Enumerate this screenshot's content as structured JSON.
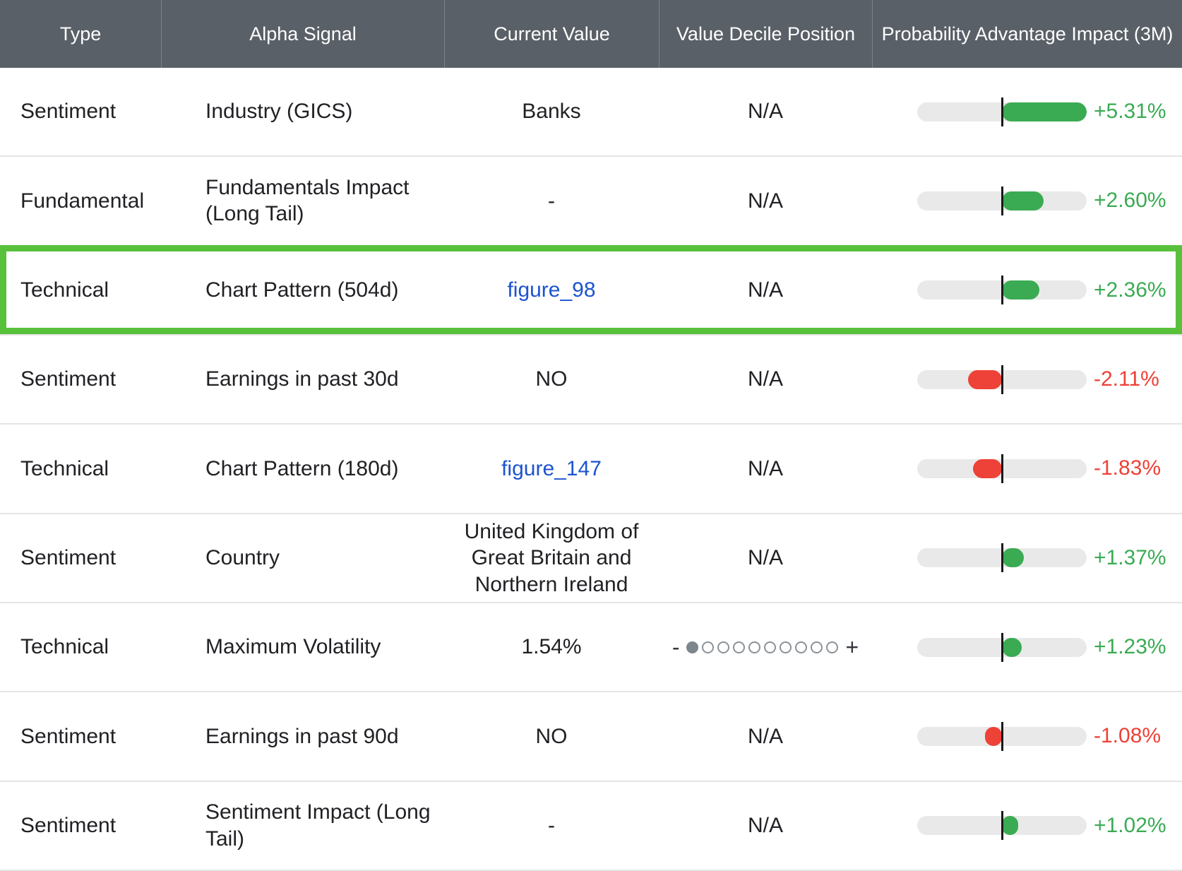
{
  "colors": {
    "header_bg": "#5a6067",
    "positive_green": "#3aab53",
    "negative_red": "#ee4137",
    "link_blue": "#1d53cf",
    "highlight_border_green": "#58c13c",
    "track_gray": "#e9e9e9"
  },
  "table": {
    "columns": [
      "Type",
      "Alpha Signal",
      "Current Value",
      "Value Decile Position",
      "Probability Advantage Impact (3M)"
    ],
    "impact_scale_max": 5.31,
    "decile_widget": {
      "minus_label": "-",
      "plus_label": "+",
      "dots_total": 10,
      "filled_dot_index": 0
    },
    "rows": [
      {
        "type": "Sentiment",
        "signal": "Industry (GICS)",
        "value": "Banks",
        "value_is_link": false,
        "decile": "N/A",
        "has_decile_widget": false,
        "impact": "+5.31%",
        "impact_value": 5.31,
        "highlighted": false
      },
      {
        "type": "Fundamental",
        "signal": "Fundamentals Impact (Long Tail)",
        "value": "-",
        "value_is_link": false,
        "decile": "N/A",
        "has_decile_widget": false,
        "impact": "+2.60%",
        "impact_value": 2.6,
        "highlighted": false
      },
      {
        "type": "Technical",
        "signal": "Chart Pattern (504d)",
        "value": "figure_98",
        "value_is_link": true,
        "decile": "N/A",
        "has_decile_widget": false,
        "impact": "+2.36%",
        "impact_value": 2.36,
        "highlighted": true
      },
      {
        "type": "Sentiment",
        "signal": "Earnings in past 30d",
        "value": "NO",
        "value_is_link": false,
        "decile": "N/A",
        "has_decile_widget": false,
        "impact": "-2.11%",
        "impact_value": -2.11,
        "highlighted": false
      },
      {
        "type": "Technical",
        "signal": "Chart Pattern (180d)",
        "value": "figure_147",
        "value_is_link": true,
        "decile": "N/A",
        "has_decile_widget": false,
        "impact": "-1.83%",
        "impact_value": -1.83,
        "highlighted": false
      },
      {
        "type": "Sentiment",
        "signal": "Country",
        "value": "United Kingdom of Great Britain and Northern Ireland",
        "value_is_link": false,
        "decile": "N/A",
        "has_decile_widget": false,
        "impact": "+1.37%",
        "impact_value": 1.37,
        "highlighted": false
      },
      {
        "type": "Technical",
        "signal": "Maximum Volatility",
        "value": "1.54%",
        "value_is_link": false,
        "decile": "",
        "has_decile_widget": true,
        "impact": "+1.23%",
        "impact_value": 1.23,
        "highlighted": false
      },
      {
        "type": "Sentiment",
        "signal": "Earnings in past 90d",
        "value": "NO",
        "value_is_link": false,
        "decile": "N/A",
        "has_decile_widget": false,
        "impact": "-1.08%",
        "impact_value": -1.08,
        "highlighted": false
      },
      {
        "type": "Sentiment",
        "signal": "Sentiment Impact (Long Tail)",
        "value": "-",
        "value_is_link": false,
        "decile": "N/A",
        "has_decile_widget": false,
        "impact": "+1.02%",
        "impact_value": 1.02,
        "highlighted": false
      }
    ]
  }
}
